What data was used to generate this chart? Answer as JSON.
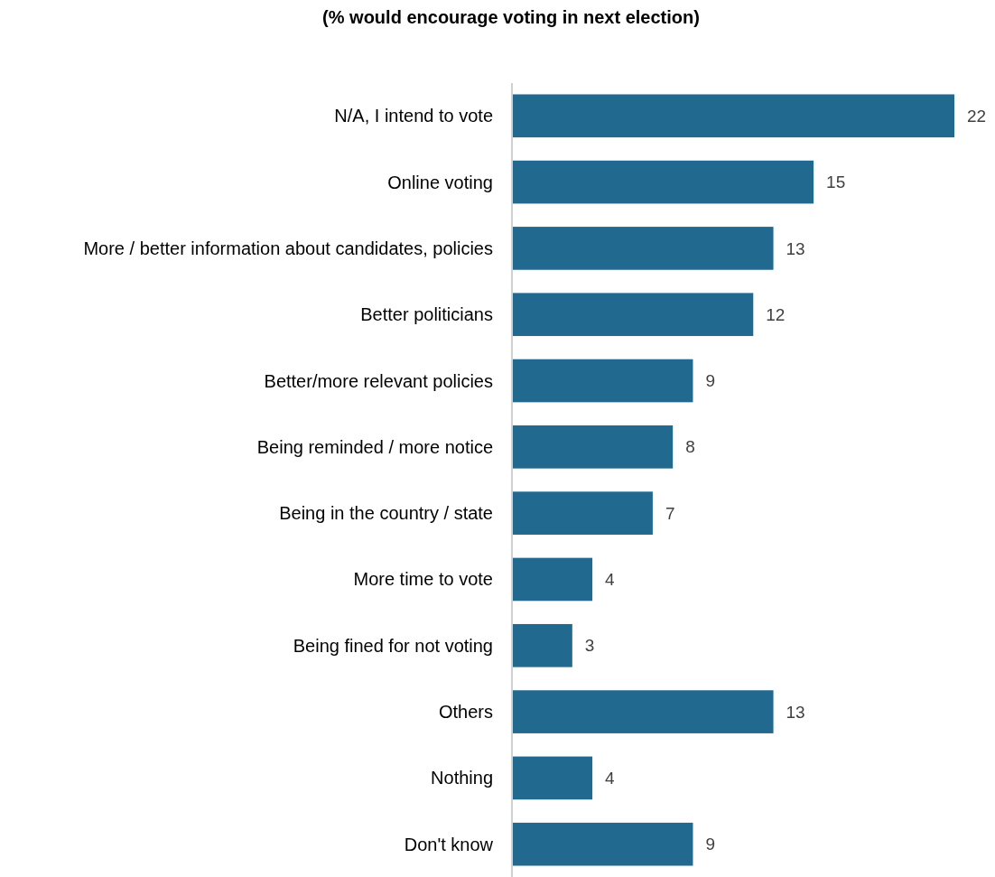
{
  "chart_data": {
    "type": "bar",
    "orientation": "horizontal",
    "title": "(% would encourage voting in next election)",
    "categories": [
      "N/A, I intend to vote",
      "Online voting",
      "More / better information about candidates, policies",
      "Better politicians",
      "Better/more relevant policies",
      "Being reminded / more notice",
      "Being in the country / state",
      "More time to vote",
      "Being fined for not voting",
      "Others",
      "Nothing",
      "Don't know"
    ],
    "values": [
      22,
      15,
      13,
      12,
      9,
      8,
      7,
      4,
      3,
      13,
      4,
      9
    ],
    "color": "#22698f",
    "data_labels": true
  }
}
